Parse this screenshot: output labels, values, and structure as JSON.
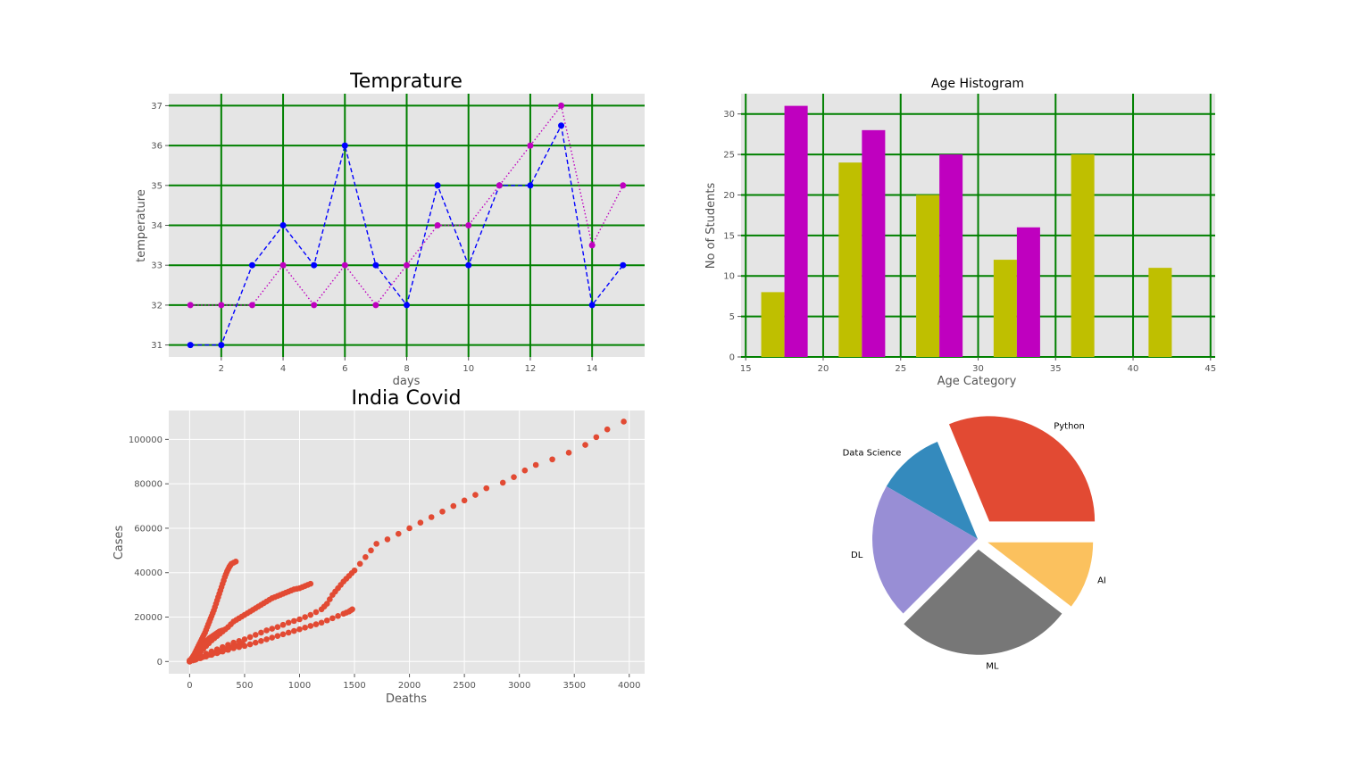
{
  "chart_data": [
    {
      "type": "line",
      "title": "Temprature",
      "xlabel": "days",
      "ylabel": "temperature",
      "xlim": [
        0.3,
        15.7
      ],
      "ylim": [
        30.7,
        37.3
      ],
      "xticks": [
        2,
        4,
        6,
        8,
        10,
        12,
        14
      ],
      "yticks": [
        31,
        32,
        33,
        34,
        35,
        36,
        37
      ],
      "grid": true,
      "grid_color": "#008000",
      "x": [
        1,
        2,
        3,
        4,
        5,
        6,
        7,
        8,
        9,
        10,
        11,
        12,
        13,
        14,
        15
      ],
      "series": [
        {
          "color": "#0000ff",
          "linestyle": "dashed",
          "values": [
            31,
            31,
            33,
            34,
            33,
            36,
            33,
            32,
            35,
            33,
            35,
            35,
            36.5,
            32,
            33
          ]
        },
        {
          "color": "#bf00bf",
          "linestyle": "dotted",
          "values": [
            32,
            32,
            32,
            33,
            32,
            33,
            32,
            33,
            34,
            34,
            35,
            36,
            37,
            33.5,
            35
          ]
        }
      ]
    },
    {
      "type": "bar",
      "title": "Age Histogram",
      "xlabel": "Age Category",
      "ylabel": "No of Students",
      "xlim": [
        14.7,
        45.3
      ],
      "ylim": [
        0,
        32.5
      ],
      "xticks": [
        15,
        20,
        25,
        30,
        35,
        40,
        45
      ],
      "yticks": [
        0,
        5,
        10,
        15,
        20,
        25,
        30
      ],
      "grid": true,
      "grid_color": "#008000",
      "series": [
        {
          "color": "#bfbf00",
          "x": [
            16,
            21,
            26,
            31,
            36,
            41
          ],
          "values": [
            8,
            24,
            20,
            12,
            25,
            11
          ],
          "width": 1.5
        },
        {
          "color": "#bf00bf",
          "x": [
            17.5,
            22.5,
            27.5,
            32.5
          ],
          "values": [
            31,
            28,
            25,
            16
          ],
          "width": 1.5
        }
      ]
    },
    {
      "type": "scatter",
      "title": "India Covid",
      "xlabel": "Deaths",
      "ylabel": "Cases",
      "xlim": [
        -190,
        4140
      ],
      "ylim": [
        -5500,
        113000
      ],
      "xticks": [
        0,
        500,
        1000,
        1500,
        2000,
        2500,
        3000,
        3500,
        4000
      ],
      "yticks": [
        0,
        20000,
        40000,
        60000,
        80000,
        100000
      ],
      "color": "#e24a33",
      "branches": [
        {
          "points": [
            [
              0,
              0
            ],
            [
              20,
              1500
            ],
            [
              40,
              3000
            ],
            [
              60,
              5000
            ],
            [
              80,
              7000
            ],
            [
              100,
              9000
            ],
            [
              120,
              11000
            ],
            [
              140,
              13000
            ],
            [
              160,
              15500
            ],
            [
              180,
              18000
            ],
            [
              200,
              20500
            ],
            [
              220,
              23000
            ],
            [
              240,
              26000
            ],
            [
              260,
              29000
            ],
            [
              280,
              32000
            ],
            [
              300,
              35000
            ],
            [
              320,
              38000
            ],
            [
              340,
              40500
            ],
            [
              360,
              42500
            ],
            [
              380,
              44000
            ],
            [
              420,
              45000
            ]
          ]
        },
        {
          "points": [
            [
              0,
              200
            ],
            [
              50,
              2000
            ],
            [
              100,
              4500
            ],
            [
              150,
              7000
            ],
            [
              200,
              9500
            ],
            [
              250,
              11500
            ],
            [
              300,
              13500
            ],
            [
              350,
              15500
            ],
            [
              400,
              18000
            ],
            [
              450,
              19500
            ],
            [
              500,
              21000
            ],
            [
              550,
              22500
            ],
            [
              600,
              24000
            ],
            [
              650,
              25500
            ],
            [
              700,
              27000
            ],
            [
              750,
              28500
            ],
            [
              800,
              29500
            ],
            [
              850,
              30500
            ],
            [
              900,
              31500
            ],
            [
              950,
              32500
            ],
            [
              1000,
              33000
            ],
            [
              1050,
              34000
            ],
            [
              1100,
              35000
            ]
          ]
        },
        {
          "points": [
            [
              0,
              500
            ],
            [
              100,
              2500
            ],
            [
              200,
              4500
            ],
            [
              300,
              6500
            ],
            [
              400,
              8500
            ],
            [
              500,
              10000
            ],
            [
              600,
              12000
            ],
            [
              700,
              14000
            ],
            [
              800,
              15500
            ],
            [
              900,
              17500
            ],
            [
              1000,
              19000
            ],
            [
              1100,
              21000
            ],
            [
              1200,
              23500
            ],
            [
              1250,
              26000
            ],
            [
              1300,
              30000
            ],
            [
              1350,
              33000
            ],
            [
              1400,
              36000
            ],
            [
              1450,
              38500
            ],
            [
              1500,
              41000
            ],
            [
              1550,
              44000
            ],
            [
              1600,
              47000
            ],
            [
              1650,
              50000
            ],
            [
              1700,
              53000
            ],
            [
              1800,
              55000
            ],
            [
              1900,
              57500
            ],
            [
              2000,
              60000
            ],
            [
              2100,
              62500
            ],
            [
              2200,
              65000
            ],
            [
              2300,
              67500
            ],
            [
              2400,
              70000
            ],
            [
              2500,
              72500
            ],
            [
              2600,
              75000
            ],
            [
              2700,
              78000
            ],
            [
              2850,
              80500
            ],
            [
              2950,
              83000
            ],
            [
              3050,
              86000
            ],
            [
              3150,
              88500
            ],
            [
              3300,
              91000
            ],
            [
              3450,
              94000
            ],
            [
              3600,
              97500
            ],
            [
              3700,
              101000
            ],
            [
              3800,
              104500
            ],
            [
              3950,
              108000
            ]
          ]
        },
        {
          "points": [
            [
              0,
              0
            ],
            [
              100,
              1500
            ],
            [
              200,
              3000
            ],
            [
              300,
              4500
            ],
            [
              400,
              6000
            ],
            [
              500,
              7000
            ],
            [
              600,
              8500
            ],
            [
              700,
              10000
            ],
            [
              800,
              11500
            ],
            [
              900,
              13000
            ],
            [
              1000,
              14500
            ],
            [
              1100,
              16000
            ],
            [
              1200,
              17500
            ],
            [
              1300,
              19500
            ],
            [
              1400,
              21500
            ],
            [
              1450,
              22500
            ],
            [
              1480,
              23500
            ]
          ]
        },
        {
          "points": [
            [
              0,
              0
            ],
            [
              30,
              2000
            ],
            [
              60,
              4000
            ],
            [
              90,
              6000
            ],
            [
              120,
              7500
            ],
            [
              150,
              9000
            ],
            [
              180,
              10500
            ],
            [
              210,
              11500
            ],
            [
              240,
              12500
            ],
            [
              270,
              13500
            ],
            [
              300,
              14000
            ]
          ]
        },
        {
          "points": [
            [
              0,
              0
            ],
            [
              60,
              1000
            ],
            [
              120,
              2000
            ],
            [
              180,
              3000
            ],
            [
              240,
              4000
            ],
            [
              300,
              5000
            ],
            [
              360,
              6000
            ],
            [
              420,
              7000
            ],
            [
              480,
              8000
            ]
          ]
        }
      ]
    },
    {
      "type": "pie",
      "labels": [
        "Python",
        "Data Science",
        "DL",
        "ML",
        "AI"
      ],
      "values": [
        30,
        10,
        20,
        26,
        10
      ],
      "colors": [
        "#e24a33",
        "#348abd",
        "#988ed5",
        "#777777",
        "#fbc15e"
      ],
      "explode": [
        0.2,
        0,
        0,
        0.1,
        0.1
      ]
    }
  ]
}
